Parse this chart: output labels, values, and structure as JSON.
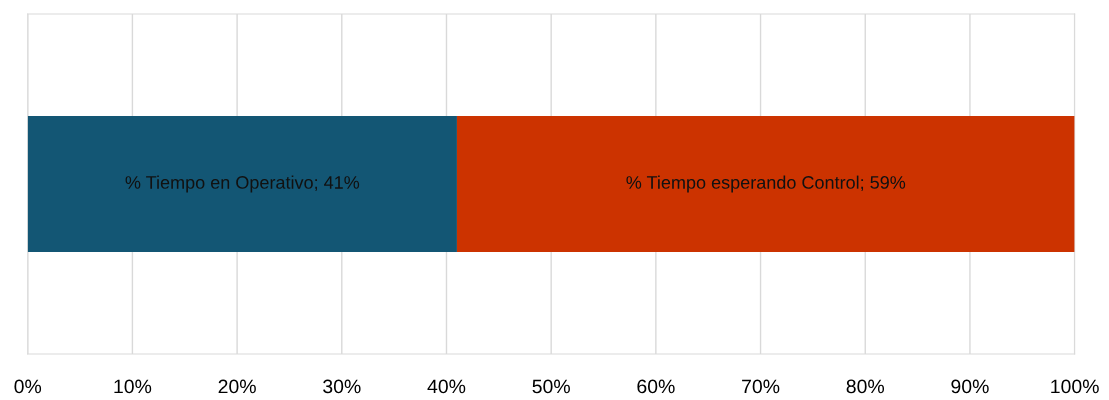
{
  "chart_data": {
    "type": "bar",
    "orientation": "horizontal",
    "stacked": true,
    "categories": [
      null
    ],
    "series": [
      {
        "color": "#135674",
        "values": [
          41
        ],
        "value_labels": [
          "% Tiempo en Operativo; 41%"
        ]
      },
      {
        "color": "#cc3300",
        "values": [
          59
        ],
        "value_labels": [
          "% Tiempo esperando Control; 59%"
        ]
      }
    ],
    "xlim": [
      0,
      100
    ],
    "xticks": [
      {
        "value": 0,
        "label": "0%"
      },
      {
        "value": 10,
        "label": "10%"
      },
      {
        "value": 20,
        "label": "20%"
      },
      {
        "value": 30,
        "label": "30%"
      },
      {
        "value": 40,
        "label": "40%"
      },
      {
        "value": 50,
        "label": "50%"
      },
      {
        "value": 60,
        "label": "60%"
      },
      {
        "value": 70,
        "label": "70%"
      },
      {
        "value": 80,
        "label": "80%"
      },
      {
        "value": 90,
        "label": "90%"
      },
      {
        "value": 100,
        "label": "100%"
      }
    ],
    "grid": "x",
    "tick_labels": "x",
    "legend": false
  }
}
